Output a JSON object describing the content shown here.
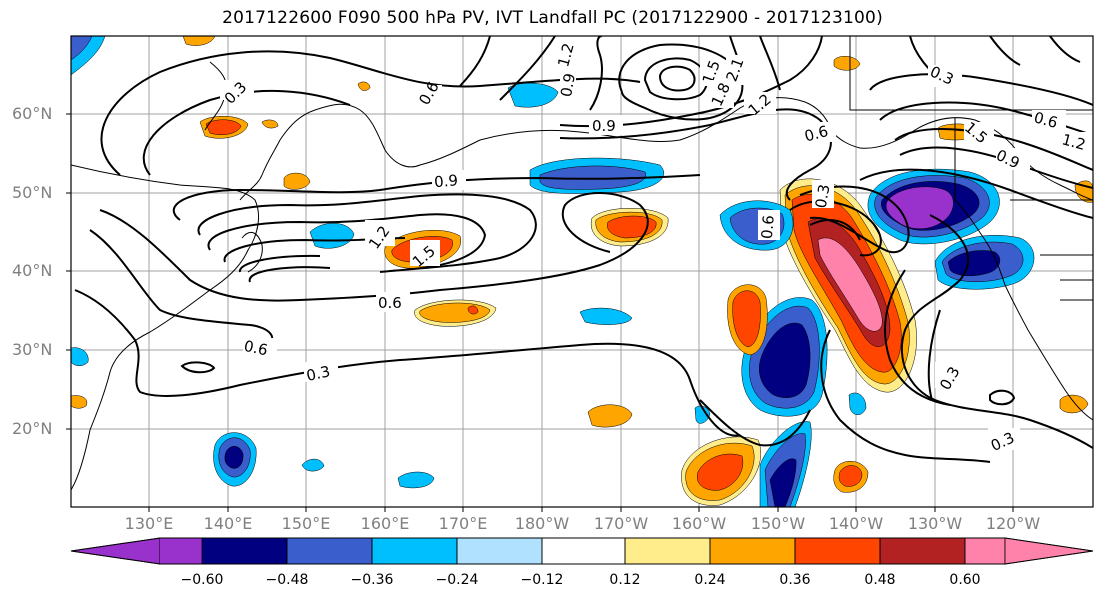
{
  "title": "2017122600 F090 500 hPa PV, IVT Landfall PC (2017122900 - 2017123100)",
  "map": {
    "lat_labels": [
      "60°N",
      "50°N",
      "40°N",
      "30°N",
      "20°N"
    ],
    "lon_labels": [
      "130°E",
      "140°E",
      "150°E",
      "160°E",
      "170°E",
      "180°W",
      "170°W",
      "160°W",
      "150°W",
      "140°W",
      "130°W",
      "120°W"
    ],
    "contour_labels": [
      "0.3",
      "0.6",
      "0.9",
      "1.2",
      "1.5",
      "1.8",
      "2.1",
      "0.9",
      "0.6",
      "0.3",
      "0.6",
      "1.2",
      "0.9",
      "0.6",
      "0.3",
      "0.3",
      "0.3",
      "0.6",
      "1.2",
      "1.5",
      "0.9",
      "0.6",
      "1.2",
      "1.5",
      "0.3"
    ]
  },
  "colorbar": {
    "ticks": [
      "−0.60",
      "−0.48",
      "−0.36",
      "−0.24",
      "−0.12",
      "0.12",
      "0.24",
      "0.36",
      "0.48",
      "0.60"
    ],
    "colors": [
      "#9932cc",
      "#000080",
      "#3a5fcd",
      "#00bfff",
      "#b0e2ff",
      "#ffffff",
      "#ffec8b",
      "#ffa500",
      "#ff4500",
      "#b22222",
      "#ff82ab"
    ],
    "extend": "both"
  }
}
